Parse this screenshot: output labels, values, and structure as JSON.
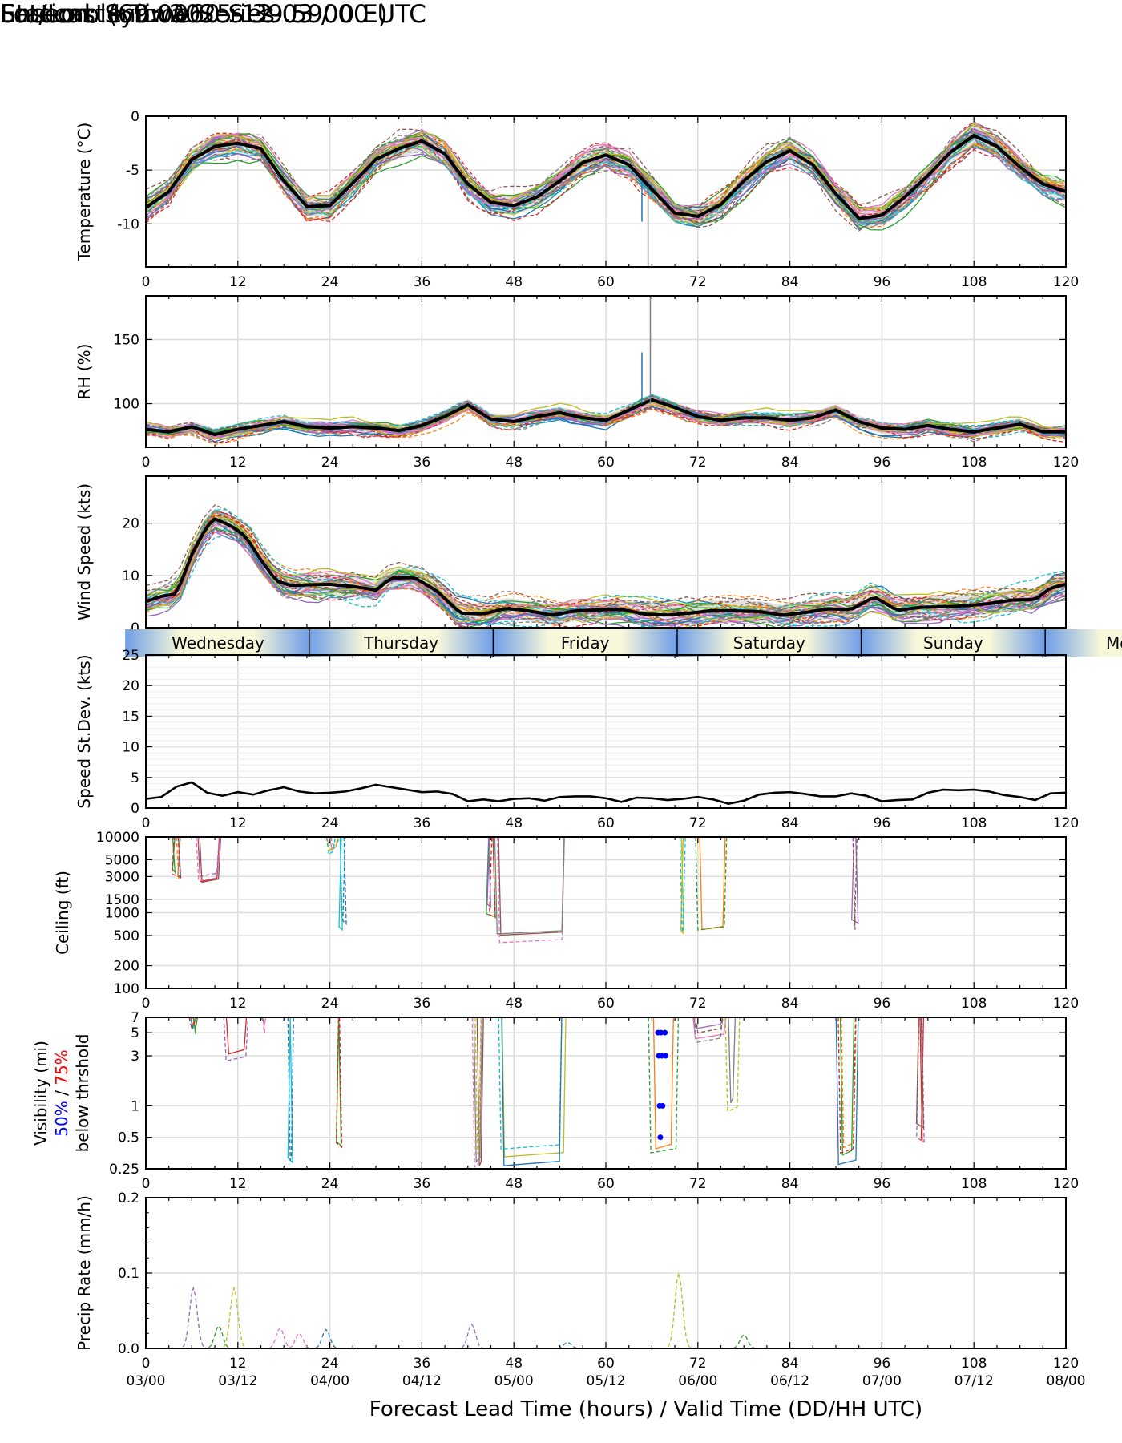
{
  "header": {
    "title_left": "Ensemble Time Series",
    "title_right": "Forecast Init: 2025-12-03 / 00 UTC",
    "station": "Station: Syowa",
    "latlon": "Lat/Lon: (69.0060 S 39.5900 E)"
  },
  "colors": {
    "mean": "#000000",
    "spread": "#c8c8c8",
    "grid": "#dddddd",
    "vis50": "#0000ff",
    "vis75": "#ff0000",
    "day_band_dark": "#6f9ee6",
    "day_band_light": "#f7f7da",
    "members": [
      "#1f77b4",
      "#ff7f0e",
      "#2ca02c",
      "#d62728",
      "#9467bd",
      "#8c564b",
      "#e377c2",
      "#7f7f7f",
      "#bcbd22",
      "#17becf"
    ]
  },
  "xaxis": {
    "range": [
      0,
      120
    ],
    "ticks": [
      "0",
      "12",
      "24",
      "36",
      "48",
      "60",
      "72",
      "84",
      "96",
      "108",
      "120"
    ],
    "valid_times": [
      "03/00",
      "03/12",
      "04/00",
      "04/12",
      "05/00",
      "05/12",
      "06/00",
      "06/12",
      "07/00",
      "07/12",
      "08/00"
    ],
    "label": "Forecast Lead Time (hours) / Valid Time (DD/HH UTC)"
  },
  "days": {
    "names": [
      "Wednesday",
      "Thursday",
      "Friday",
      "Saturday",
      "Sunday",
      "Monday"
    ],
    "boundaries_hours": [
      21.3,
      45.3,
      69.3,
      93.3,
      117.3
    ]
  },
  "chart_data": [
    {
      "type": "line",
      "id": "temperature",
      "ylabel": "Temperature (°C)",
      "ylim": [
        -14,
        0
      ],
      "yticks": [
        "0",
        "-5",
        "-10"
      ],
      "mean": {
        "x": [
          0,
          3,
          6,
          9,
          12,
          15,
          18,
          21,
          24,
          27,
          30,
          33,
          36,
          39,
          42,
          45,
          48,
          51,
          54,
          57,
          60,
          63,
          66,
          69,
          72,
          75,
          78,
          81,
          84,
          87,
          90,
          93,
          96,
          99,
          102,
          105,
          108,
          111,
          114,
          117,
          120
        ],
        "y": [
          -8.5,
          -7,
          -4,
          -2.8,
          -2.5,
          -3,
          -6,
          -8.4,
          -8.3,
          -6.2,
          -4,
          -3,
          -2.3,
          -3.5,
          -6.3,
          -8,
          -8.3,
          -7.5,
          -6,
          -4.3,
          -3.6,
          -4.5,
          -6.8,
          -9,
          -9.3,
          -8.2,
          -6,
          -4.2,
          -3.2,
          -4.5,
          -7.2,
          -9.5,
          -9.2,
          -7.5,
          -5.5,
          -3.3,
          -1.8,
          -2.8,
          -4.7,
          -6.3,
          -7
        ]
      },
      "series_count": 30
    },
    {
      "type": "line",
      "id": "rh",
      "ylabel": "RH (%)",
      "ylim": [
        66,
        184
      ],
      "yticks": [
        "150",
        "100"
      ],
      "mean": {
        "x": [
          0,
          3,
          6,
          9,
          12,
          15,
          18,
          21,
          24,
          27,
          30,
          33,
          36,
          39,
          42,
          45,
          48,
          51,
          54,
          57,
          60,
          63,
          66,
          69,
          72,
          75,
          78,
          81,
          84,
          87,
          90,
          93,
          96,
          99,
          102,
          105,
          108,
          111,
          114,
          117,
          120
        ],
        "y": [
          80,
          78,
          82,
          76,
          80,
          83,
          86,
          82,
          81,
          82,
          81,
          79,
          83,
          90,
          99,
          88,
          86,
          90,
          93,
          89,
          87,
          95,
          103,
          97,
          90,
          87,
          89,
          89,
          87,
          89,
          95,
          86,
          81,
          80,
          83,
          80,
          78,
          81,
          84,
          78,
          78
        ]
      },
      "series_count": 30
    },
    {
      "type": "line",
      "id": "wind_speed",
      "ylabel": "Wind Speed (kts)",
      "ylim": [
        0,
        29
      ],
      "yticks": [
        "0",
        "10",
        "20"
      ],
      "mean": {
        "x": [
          0,
          2,
          4,
          6,
          8,
          9,
          11,
          13,
          15,
          17,
          19,
          21,
          24,
          27,
          30,
          32,
          35,
          38,
          41,
          44,
          47,
          50,
          53,
          56,
          59,
          62,
          65,
          68,
          71,
          74,
          77,
          80,
          83,
          86,
          89,
          92,
          95,
          98,
          101,
          104,
          107,
          110,
          113,
          116,
          118,
          120
        ],
        "y": [
          5,
          6,
          6.5,
          14,
          19.5,
          20.8,
          19.6,
          17.5,
          13,
          9,
          8,
          8.2,
          8.3,
          7.9,
          7.2,
          9.5,
          9.6,
          7,
          2.8,
          2.6,
          3.7,
          3.2,
          2.4,
          3.2,
          3.4,
          3.5,
          2.6,
          2.4,
          2.8,
          3.3,
          3.2,
          3.1,
          2.4,
          2.9,
          3.6,
          3.5,
          5.9,
          3.3,
          3.9,
          4,
          4.2,
          4.6,
          5.3,
          5.4,
          7.6,
          8.3
        ]
      },
      "series_count": 30
    },
    {
      "type": "line",
      "id": "speed_stdev",
      "ylabel": "Speed St.Dev. (kts)",
      "ylim": [
        0,
        25
      ],
      "yticks": [
        "0",
        "5",
        "10",
        "15",
        "20",
        "25"
      ],
      "mean": {
        "x": [
          0,
          2,
          4,
          6,
          8,
          10,
          12,
          14,
          16,
          18,
          20,
          22,
          24,
          26,
          28,
          30,
          32,
          34,
          36,
          38,
          40,
          42,
          44,
          46,
          48,
          50,
          52,
          54,
          56,
          58,
          60,
          62,
          64,
          66,
          68,
          70,
          72,
          74,
          76,
          78,
          80,
          82,
          84,
          86,
          88,
          90,
          92,
          94,
          96,
          98,
          100,
          102,
          104,
          106,
          108,
          110,
          112,
          114,
          116,
          118,
          120
        ],
        "y": [
          1.5,
          1.8,
          3.5,
          4.2,
          2.5,
          2,
          2.6,
          2.2,
          2.9,
          3.4,
          2.7,
          2.4,
          2.5,
          2.7,
          3.2,
          3.8,
          3.4,
          3,
          2.6,
          2.7,
          2.3,
          1.1,
          1.4,
          1.1,
          1.5,
          1.6,
          1.2,
          1.8,
          1.9,
          1.9,
          1.6,
          1,
          1.7,
          1.6,
          1.3,
          1.5,
          1.8,
          1.4,
          0.7,
          1.2,
          2.2,
          2.5,
          2.6,
          2.3,
          1.9,
          1.9,
          2.4,
          2,
          1.1,
          1.3,
          1.4,
          2.5,
          3,
          2.9,
          3,
          2.7,
          2.1,
          1.8,
          1.3,
          2.4,
          2.5
        ]
      }
    },
    {
      "type": "line",
      "id": "ceiling",
      "ylabel": "Ceiling (ft)",
      "scale": "log",
      "ylim": [
        100,
        10000
      ],
      "yticks": [
        "100",
        "200",
        "500",
        "1000",
        "1500",
        "3000",
        "5000",
        "10000"
      ],
      "drops": [
        {
          "x0": 3.5,
          "x1": 4.5,
          "min": 2200
        },
        {
          "x0": 6.5,
          "x1": 9.8,
          "min": 2300
        },
        {
          "x0": 23.5,
          "x1": 25.5,
          "min": 5000
        },
        {
          "x0": 25.2,
          "x1": 26.2,
          "min": 500
        },
        {
          "x0": 44.5,
          "x1": 45.5,
          "min": 800
        },
        {
          "x0": 45.5,
          "x1": 55,
          "min": 380
        },
        {
          "x0": 69.5,
          "x1": 70.5,
          "min": 500
        },
        {
          "x0": 71.5,
          "x1": 76,
          "min": 500
        },
        {
          "x0": 92,
          "x1": 93,
          "min": 480
        }
      ]
    },
    {
      "type": "line",
      "id": "visibility",
      "ylabel": "Visibility (mi)",
      "ylabel_50": "50%",
      "ylabel_sep": " / ",
      "ylabel_75": "75%",
      "ylabel_2": "below thrshold",
      "scale": "log",
      "ylim": [
        0.25,
        7
      ],
      "yticks": [
        "0.25",
        "0.5",
        "1",
        "3",
        "5",
        "7"
      ],
      "drops": [
        {
          "x0": 5.5,
          "x1": 7,
          "min": 4
        },
        {
          "x0": 10,
          "x1": 13.5,
          "min": 2
        },
        {
          "x0": 14.5,
          "x1": 16,
          "min": 4
        },
        {
          "x0": 18.5,
          "x1": 19.5,
          "min": 0.25
        },
        {
          "x0": 25,
          "x1": 25.6,
          "min": 0.4
        },
        {
          "x0": 42.5,
          "x1": 44.5,
          "min": 0.25
        },
        {
          "x0": 46,
          "x1": 55,
          "min": 0.25
        },
        {
          "x0": 65.5,
          "x1": 69.5,
          "min": 0.25
        },
        {
          "x0": 71,
          "x1": 76,
          "min": 4
        },
        {
          "x0": 75.5,
          "x1": 77.5,
          "min": 0.7
        },
        {
          "x0": 90,
          "x1": 93,
          "min": 0.25
        },
        {
          "x0": 100.5,
          "x1": 101.5,
          "min": 0.4
        }
      ],
      "threshold_points": {
        "x": [
          66.8,
          67.2,
          67.7,
          66.9,
          67.3,
          67.8,
          67,
          67.4,
          67.1
        ],
        "y": [
          5,
          5,
          5,
          3,
          3,
          3,
          1,
          1,
          0.5
        ]
      }
    },
    {
      "type": "line",
      "id": "precip",
      "ylabel": "Precip Rate (mm/h)",
      "ylim": [
        0,
        0.2
      ],
      "yticks": [
        "0.0",
        "0.1",
        "0.2"
      ],
      "peaks": [
        {
          "x": 6.2,
          "y": 0.08
        },
        {
          "x": 11.5,
          "y": 0.08
        },
        {
          "x": 9.5,
          "y": 0.03
        },
        {
          "x": 17.5,
          "y": 0.027
        },
        {
          "x": 23.5,
          "y": 0.025
        },
        {
          "x": 42.5,
          "y": 0.032
        },
        {
          "x": 69.5,
          "y": 0.1
        },
        {
          "x": 78,
          "y": 0.018
        },
        {
          "x": 20,
          "y": 0.02
        },
        {
          "x": 55,
          "y": 0.008
        }
      ]
    }
  ]
}
